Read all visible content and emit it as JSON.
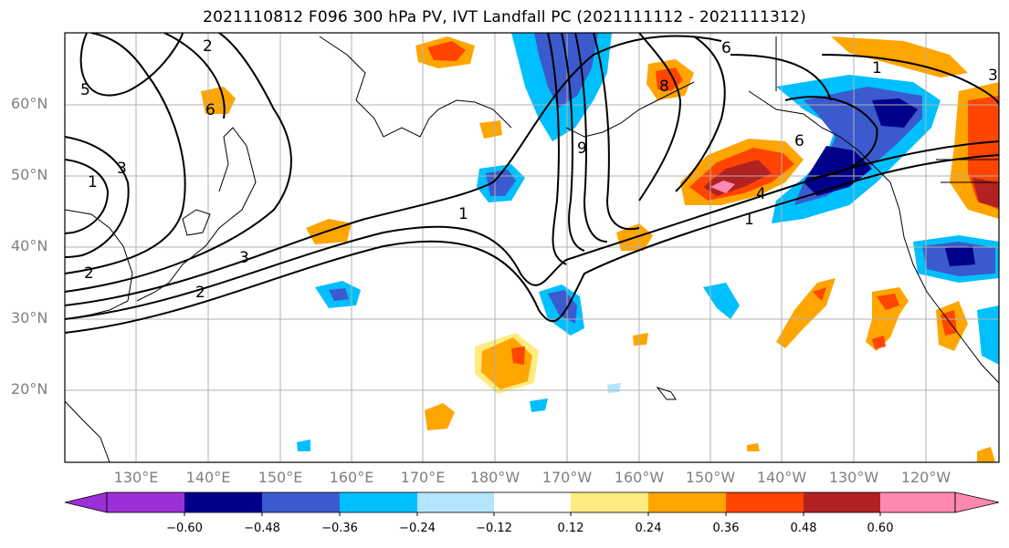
{
  "title": "2021110812 F096 300 hPa PV, IVT Landfall PC (2021111112 - 2021111312)",
  "lat_labels": [
    "60°N",
    "50°N",
    "40°N",
    "30°N",
    "20°N"
  ],
  "lon_labels": [
    "130°E",
    "140°E",
    "150°E",
    "160°E",
    "170°E",
    "180°W",
    "170°W",
    "160°W",
    "150°W",
    "140°W",
    "130°W",
    "120°W"
  ],
  "contour_labels": [
    "2",
    "5",
    "6",
    "1",
    "3",
    "2",
    "3",
    "2",
    "1",
    "9",
    "6",
    "8",
    "1",
    "6",
    "4",
    "1",
    "3"
  ],
  "colorbar": {
    "ticks": [
      "−0.60",
      "−0.48",
      "−0.36",
      "−0.24",
      "−0.12",
      "0.12",
      "0.24",
      "0.36",
      "0.48",
      "0.60"
    ],
    "colors": [
      "#9b30d6",
      "#00008b",
      "#3a5acd",
      "#00bfff",
      "#b3e5ff",
      "#ffffff",
      "#ffeb80",
      "#ffa500",
      "#ff4500",
      "#b22222",
      "#ff88b0"
    ]
  }
}
